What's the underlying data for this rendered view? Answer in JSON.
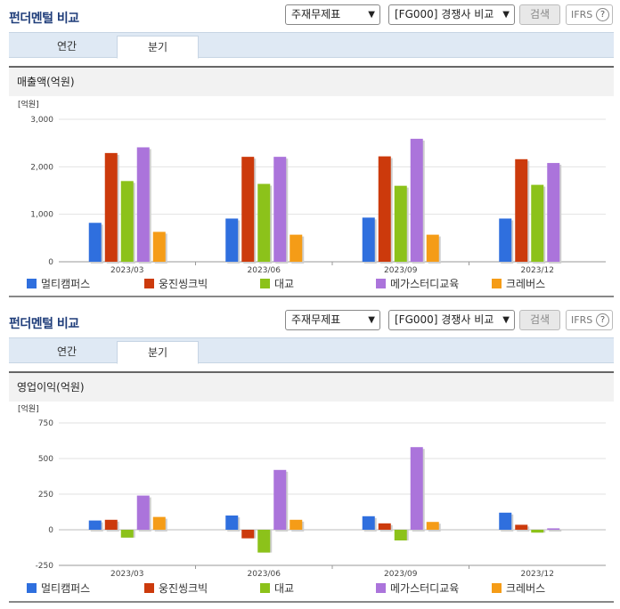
{
  "panels": [
    {
      "title": "펀더멘털 비교",
      "select1": "주재무제표",
      "select2": "[FG000] 경쟁사 비교",
      "search": "검색",
      "ifrs": "IFRS",
      "tabs": [
        "연간",
        "분기"
      ],
      "active_tab": "분기",
      "chart_title": "매출액(억원)",
      "unit": "[억원]"
    },
    {
      "title": "펀더멘털 비교",
      "select1": "주재무제표",
      "select2": "[FG000] 경쟁사 비교",
      "search": "검색",
      "ifrs": "IFRS",
      "tabs": [
        "연간",
        "분기"
      ],
      "active_tab": "분기",
      "chart_title": "영업이익(억원)",
      "unit": "[억원]"
    }
  ],
  "colors": {
    "멀티캠퍼스": "#2f6fde",
    "웅진씽크빅": "#cc3a0c",
    "대교": "#8cc21a",
    "메가스터디교육": "#ab74db",
    "크레버스": "#f59c17"
  },
  "chart_data": [
    {
      "type": "bar",
      "title": "매출액(억원)",
      "categories": [
        "2023/03",
        "2023/06",
        "2023/09",
        "2023/12"
      ],
      "ylim": [
        0,
        3000
      ],
      "yticks": [
        0,
        1000,
        2000,
        3000
      ],
      "ytick_labels": [
        "0",
        "1,000",
        "2,000",
        "3,000"
      ],
      "ylabel": "[억원]",
      "series": [
        {
          "name": "멀티캠퍼스",
          "values": [
            820,
            910,
            930,
            910
          ]
        },
        {
          "name": "웅진씽크빅",
          "values": [
            2290,
            2210,
            2220,
            2160
          ]
        },
        {
          "name": "대교",
          "values": [
            1700,
            1640,
            1600,
            1620
          ]
        },
        {
          "name": "메가스터디교육",
          "values": [
            2410,
            2210,
            2590,
            2080
          ]
        },
        {
          "name": "크레버스",
          "values": [
            630,
            570,
            570,
            0
          ]
        }
      ]
    },
    {
      "type": "bar",
      "title": "영업이익(억원)",
      "categories": [
        "2023/03",
        "2023/06",
        "2023/09",
        "2023/12"
      ],
      "ylim": [
        -250,
        750
      ],
      "yticks": [
        -250,
        0,
        250,
        500,
        750
      ],
      "ytick_labels": [
        "-250",
        "0",
        "250",
        "500",
        "750"
      ],
      "ylabel": "[억원]",
      "series": [
        {
          "name": "멀티캠퍼스",
          "values": [
            65,
            100,
            95,
            120
          ]
        },
        {
          "name": "웅진씽크빅",
          "values": [
            70,
            -60,
            45,
            35
          ]
        },
        {
          "name": "대교",
          "values": [
            -55,
            -160,
            -75,
            -20
          ]
        },
        {
          "name": "메가스터디교육",
          "values": [
            240,
            420,
            580,
            10
          ]
        },
        {
          "name": "크레버스",
          "values": [
            90,
            70,
            55,
            0
          ]
        }
      ]
    }
  ]
}
